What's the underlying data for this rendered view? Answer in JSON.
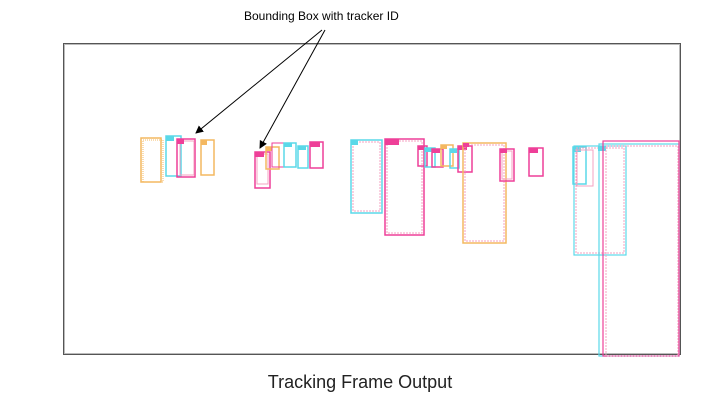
{
  "annotation": "Bounding Box with tracker ID",
  "caption": "Tracking Frame Output",
  "colors": {
    "orange": "#f4b860",
    "cyan": "#5ad8e8",
    "magenta": "#ee3f98",
    "pink": "#f4a0c0",
    "frame": "#555555",
    "arrow": "#000000"
  }
}
